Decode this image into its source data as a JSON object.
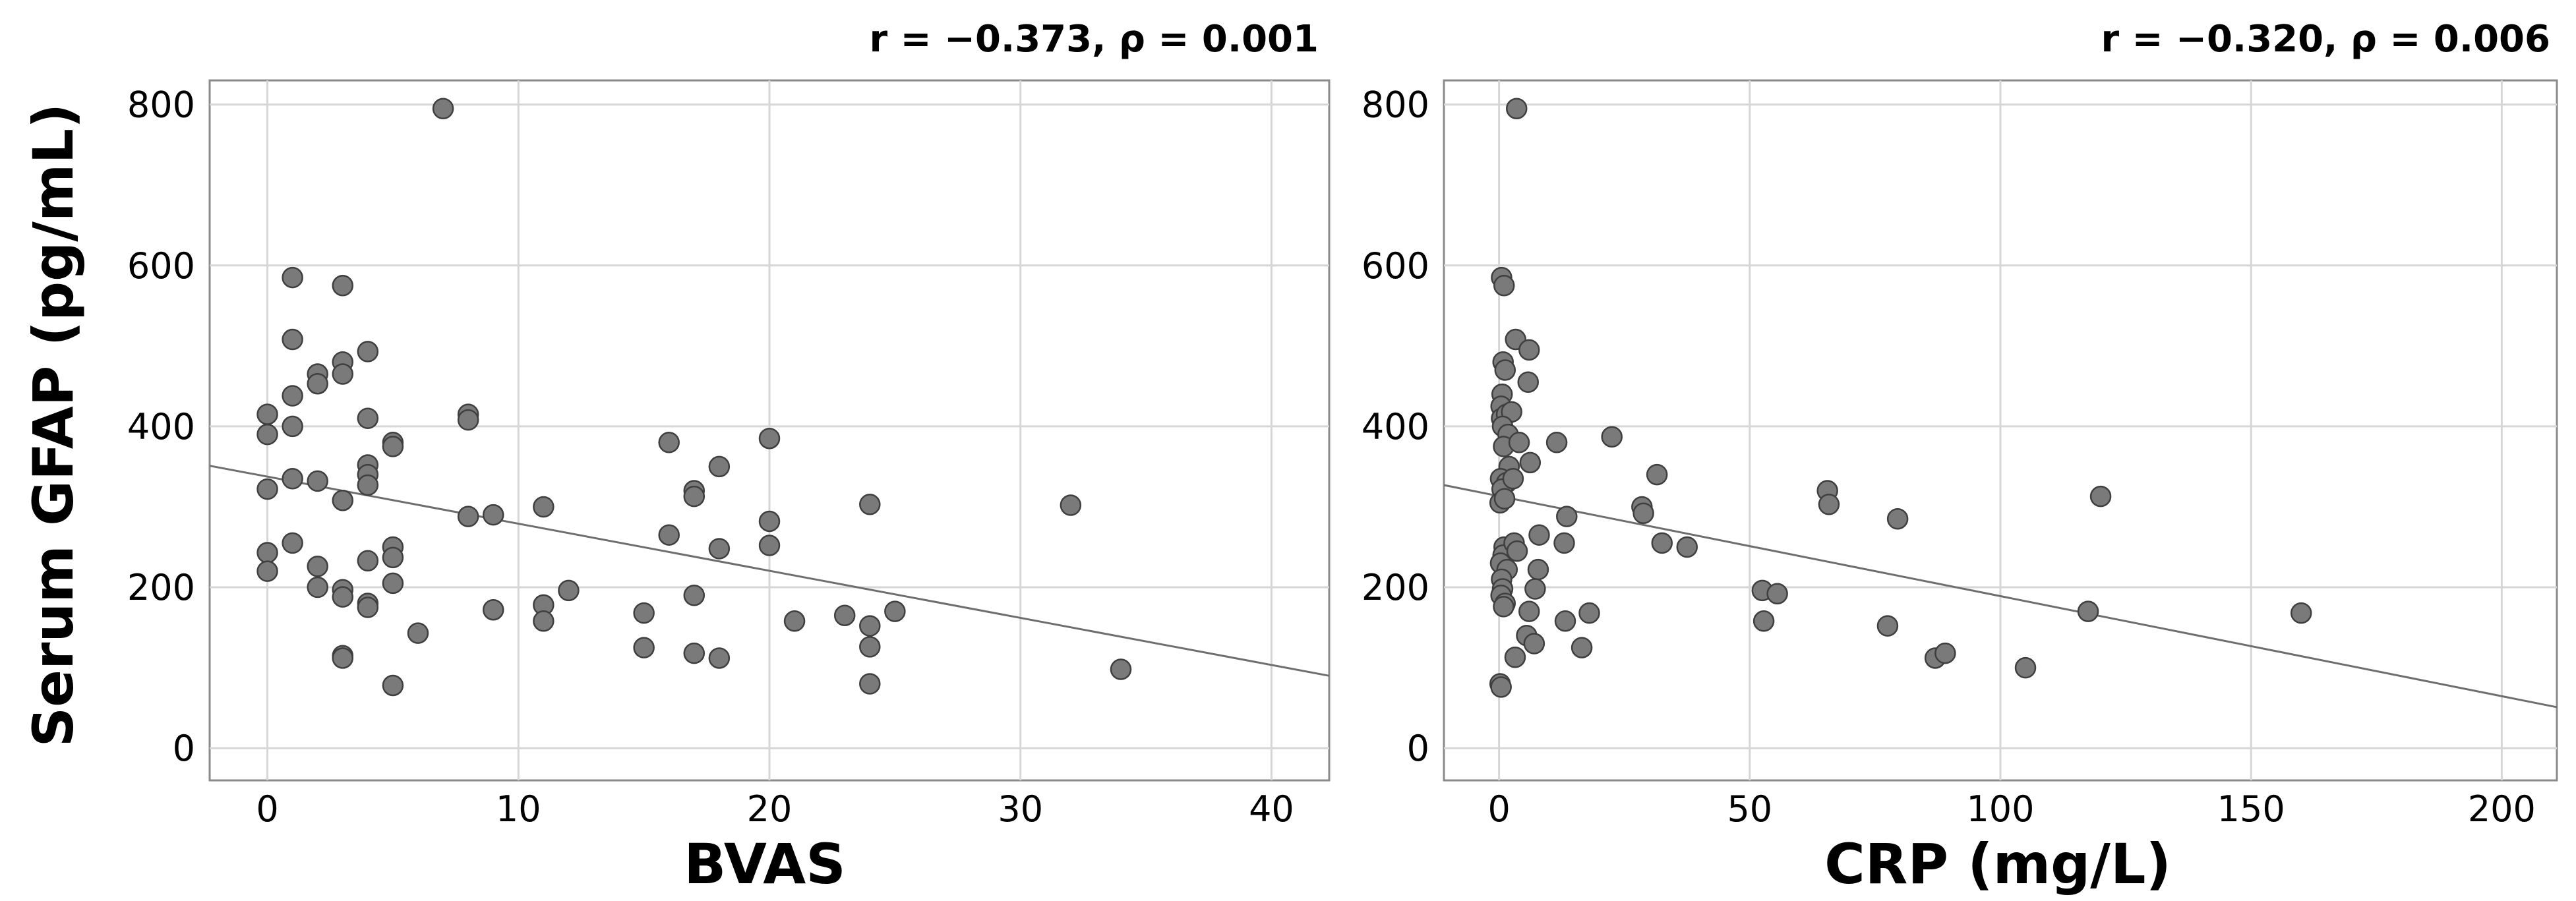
{
  "ylabel": "Serum GFAP (pg/mL)",
  "chart_data": [
    {
      "type": "scatter",
      "title": "",
      "annotation": "r = −0.373, ρ = 0.001",
      "xlabel": "BVAS",
      "ylabel": "Serum GFAP (pg/mL)",
      "xlim": [
        -2.3,
        42.3
      ],
      "ylim": [
        -40,
        830
      ],
      "xticks": [
        "0",
        "10",
        "20",
        "30",
        "40"
      ],
      "yticks": [
        "0",
        "200",
        "400",
        "600",
        "800"
      ],
      "grid": true,
      "marker_color": "#7a7a7a",
      "fit_line": {
        "x": [
          -2.3,
          42.3
        ],
        "y": [
          351,
          90
        ]
      },
      "points": [
        {
          "x": 0,
          "y": 415
        },
        {
          "x": 0,
          "y": 390
        },
        {
          "x": 0,
          "y": 322
        },
        {
          "x": 0,
          "y": 243
        },
        {
          "x": 0,
          "y": 220
        },
        {
          "x": 1,
          "y": 585
        },
        {
          "x": 1,
          "y": 508
        },
        {
          "x": 1,
          "y": 438
        },
        {
          "x": 1,
          "y": 400
        },
        {
          "x": 1,
          "y": 335
        },
        {
          "x": 1,
          "y": 255
        },
        {
          "x": 2,
          "y": 465
        },
        {
          "x": 2,
          "y": 453
        },
        {
          "x": 2,
          "y": 332
        },
        {
          "x": 2,
          "y": 226
        },
        {
          "x": 2,
          "y": 200
        },
        {
          "x": 3,
          "y": 575
        },
        {
          "x": 3,
          "y": 480
        },
        {
          "x": 3,
          "y": 465
        },
        {
          "x": 3,
          "y": 308
        },
        {
          "x": 3,
          "y": 197
        },
        {
          "x": 3,
          "y": 188
        },
        {
          "x": 3,
          "y": 115
        },
        {
          "x": 3,
          "y": 112
        },
        {
          "x": 4,
          "y": 493
        },
        {
          "x": 4,
          "y": 410
        },
        {
          "x": 4,
          "y": 352
        },
        {
          "x": 4,
          "y": 340
        },
        {
          "x": 4,
          "y": 327
        },
        {
          "x": 4,
          "y": 233
        },
        {
          "x": 4,
          "y": 180
        },
        {
          "x": 4,
          "y": 175
        },
        {
          "x": 5,
          "y": 380
        },
        {
          "x": 5,
          "y": 375
        },
        {
          "x": 5,
          "y": 250
        },
        {
          "x": 5,
          "y": 237
        },
        {
          "x": 5,
          "y": 205
        },
        {
          "x": 5,
          "y": 78
        },
        {
          "x": 6,
          "y": 143
        },
        {
          "x": 7,
          "y": 795
        },
        {
          "x": 8,
          "y": 415
        },
        {
          "x": 8,
          "y": 408
        },
        {
          "x": 8,
          "y": 288
        },
        {
          "x": 9,
          "y": 290
        },
        {
          "x": 9,
          "y": 172
        },
        {
          "x": 11,
          "y": 300
        },
        {
          "x": 11,
          "y": 178
        },
        {
          "x": 11,
          "y": 158
        },
        {
          "x": 12,
          "y": 196
        },
        {
          "x": 15,
          "y": 168
        },
        {
          "x": 15,
          "y": 125
        },
        {
          "x": 16,
          "y": 380
        },
        {
          "x": 16,
          "y": 265
        },
        {
          "x": 17,
          "y": 320
        },
        {
          "x": 17,
          "y": 313
        },
        {
          "x": 17,
          "y": 190
        },
        {
          "x": 17,
          "y": 118
        },
        {
          "x": 18,
          "y": 350
        },
        {
          "x": 18,
          "y": 248
        },
        {
          "x": 18,
          "y": 112
        },
        {
          "x": 20,
          "y": 385
        },
        {
          "x": 20,
          "y": 282
        },
        {
          "x": 20,
          "y": 252
        },
        {
          "x": 21,
          "y": 158
        },
        {
          "x": 23,
          "y": 165
        },
        {
          "x": 24,
          "y": 303
        },
        {
          "x": 24,
          "y": 152
        },
        {
          "x": 24,
          "y": 126
        },
        {
          "x": 24,
          "y": 80
        },
        {
          "x": 25,
          "y": 170
        },
        {
          "x": 32,
          "y": 302
        },
        {
          "x": 34,
          "y": 98
        }
      ]
    },
    {
      "type": "scatter",
      "title": "",
      "annotation": "r = −0.320, ρ = 0.006",
      "xlabel": "CRP (mg/L)",
      "ylabel": "",
      "xlim": [
        -11,
        211
      ],
      "ylim": [
        -40,
        830
      ],
      "xticks": [
        "0",
        "50",
        "100",
        "150",
        "200"
      ],
      "yticks": [
        "0",
        "200",
        "400",
        "600",
        "800"
      ],
      "grid": true,
      "marker_color": "#7a7a7a",
      "fit_line": {
        "x": [
          -11,
          211
        ],
        "y": [
          327,
          51
        ]
      },
      "points": [
        {
          "x": 0.5,
          "y": 585
        },
        {
          "x": 1,
          "y": 575
        },
        {
          "x": 0.8,
          "y": 480
        },
        {
          "x": 1.2,
          "y": 470
        },
        {
          "x": 0.6,
          "y": 440
        },
        {
          "x": 0.4,
          "y": 425
        },
        {
          "x": 0.5,
          "y": 410
        },
        {
          "x": 1.5,
          "y": 415
        },
        {
          "x": 2.5,
          "y": 418
        },
        {
          "x": 0.7,
          "y": 400
        },
        {
          "x": 1.8,
          "y": 390
        },
        {
          "x": 0.9,
          "y": 375
        },
        {
          "x": 2,
          "y": 350
        },
        {
          "x": 0.3,
          "y": 335
        },
        {
          "x": 1.5,
          "y": 330
        },
        {
          "x": 0.6,
          "y": 322
        },
        {
          "x": 0.2,
          "y": 305
        },
        {
          "x": 1.1,
          "y": 310
        },
        {
          "x": 2.8,
          "y": 335
        },
        {
          "x": 1,
          "y": 250
        },
        {
          "x": 0.8,
          "y": 240
        },
        {
          "x": 0.3,
          "y": 230
        },
        {
          "x": 1.6,
          "y": 222
        },
        {
          "x": 0.5,
          "y": 210
        },
        {
          "x": 0.7,
          "y": 198
        },
        {
          "x": 0.4,
          "y": 190
        },
        {
          "x": 1.2,
          "y": 180
        },
        {
          "x": 0.9,
          "y": 176
        },
        {
          "x": 0.2,
          "y": 80
        },
        {
          "x": 0.4,
          "y": 76
        },
        {
          "x": 3.5,
          "y": 795
        },
        {
          "x": 3.3,
          "y": 508
        },
        {
          "x": 3,
          "y": 255
        },
        {
          "x": 3.6,
          "y": 245
        },
        {
          "x": 4,
          "y": 380
        },
        {
          "x": 3.2,
          "y": 113
        },
        {
          "x": 6,
          "y": 495
        },
        {
          "x": 5.8,
          "y": 455
        },
        {
          "x": 6.2,
          "y": 355
        },
        {
          "x": 6,
          "y": 170
        },
        {
          "x": 5.5,
          "y": 140
        },
        {
          "x": 7,
          "y": 130
        },
        {
          "x": 8,
          "y": 265
        },
        {
          "x": 7.8,
          "y": 222
        },
        {
          "x": 7.2,
          "y": 198
        },
        {
          "x": 11.5,
          "y": 380
        },
        {
          "x": 13.5,
          "y": 288
        },
        {
          "x": 13,
          "y": 255
        },
        {
          "x": 13.2,
          "y": 158
        },
        {
          "x": 16.5,
          "y": 125
        },
        {
          "x": 18,
          "y": 168
        },
        {
          "x": 22.5,
          "y": 387
        },
        {
          "x": 28.5,
          "y": 300
        },
        {
          "x": 28.8,
          "y": 292
        },
        {
          "x": 31.5,
          "y": 340
        },
        {
          "x": 32.5,
          "y": 255
        },
        {
          "x": 37.5,
          "y": 250
        },
        {
          "x": 52.5,
          "y": 196
        },
        {
          "x": 52.8,
          "y": 158
        },
        {
          "x": 55.5,
          "y": 192
        },
        {
          "x": 65.5,
          "y": 320
        },
        {
          "x": 65.8,
          "y": 303
        },
        {
          "x": 77.5,
          "y": 152
        },
        {
          "x": 79.5,
          "y": 285
        },
        {
          "x": 87,
          "y": 112
        },
        {
          "x": 89,
          "y": 118
        },
        {
          "x": 105,
          "y": 100
        },
        {
          "x": 117.5,
          "y": 170
        },
        {
          "x": 120,
          "y": 313
        },
        {
          "x": 160,
          "y": 168
        }
      ]
    }
  ]
}
